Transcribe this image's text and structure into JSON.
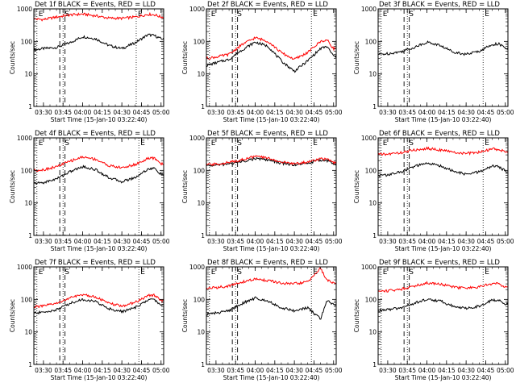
{
  "figure": {
    "x_axis_title": "Start Time (15-Jan-10 03:22:40)",
    "y_axis_title": "Counts/sec",
    "x_tick_labels": [
      "03:30",
      "03:45",
      "04:00",
      "04:15",
      "04:30",
      "04:45",
      "05:00"
    ],
    "y_tick_labels": [
      "1",
      "10",
      "100",
      "1000"
    ],
    "colors": {
      "events": "#000000",
      "lld": "#ff0000",
      "axes": "#000000"
    }
  },
  "chart_data": [
    {
      "type": "line",
      "title": "Det 1f BLACK = Events, RED = LLD",
      "xlim": [
        "03:22:40",
        "05:02:00"
      ],
      "ylim": [
        1,
        1000
      ],
      "yscale": "log",
      "markers": [
        {
          "label": "E",
          "at": "03:25"
        },
        {
          "label": "S",
          "at": "03:45"
        },
        {
          "label": "E",
          "at": "04:41"
        }
      ],
      "series": [
        {
          "name": "Events",
          "color": "#000000",
          "x": [
            "03:22:40",
            "03:30",
            "03:40",
            "03:50",
            "04:00",
            "04:10",
            "04:20",
            "04:30",
            "04:40",
            "04:50",
            "04:55",
            "05:00"
          ],
          "y": [
            55,
            60,
            65,
            90,
            140,
            120,
            75,
            60,
            90,
            160,
            150,
            120
          ]
        },
        {
          "name": "LLD",
          "color": "#ff0000",
          "x": [
            "03:22:40",
            "03:30",
            "03:40",
            "03:50",
            "04:00",
            "04:10",
            "04:20",
            "04:30",
            "04:40",
            "04:50",
            "04:55",
            "05:00"
          ],
          "y": [
            490,
            470,
            560,
            650,
            690,
            610,
            520,
            510,
            560,
            680,
            660,
            560
          ]
        }
      ]
    },
    {
      "type": "line",
      "title": "Det 2f BLACK = Events, RED = LLD",
      "xlim": [
        "03:22:40",
        "05:02:00"
      ],
      "ylim": [
        1,
        1000
      ],
      "yscale": "log",
      "markers": [
        {
          "label": "E",
          "at": "03:25"
        },
        {
          "label": "S",
          "at": "03:45"
        },
        {
          "label": "E",
          "at": "04:43"
        }
      ],
      "series": [
        {
          "name": "Events",
          "color": "#000000",
          "x": [
            "03:22:40",
            "03:30",
            "03:40",
            "03:50",
            "04:00",
            "04:10",
            "04:20",
            "04:30",
            "04:40",
            "04:50",
            "04:55",
            "05:00"
          ],
          "y": [
            18,
            22,
            28,
            55,
            95,
            70,
            25,
            12,
            25,
            60,
            70,
            35
          ]
        },
        {
          "name": "LLD",
          "color": "#ff0000",
          "x": [
            "03:22:40",
            "03:30",
            "03:40",
            "03:50",
            "04:00",
            "04:10",
            "04:20",
            "04:30",
            "04:40",
            "04:50",
            "04:55",
            "05:00"
          ],
          "y": [
            30,
            33,
            40,
            80,
            130,
            100,
            45,
            28,
            45,
            100,
            110,
            60
          ]
        }
      ]
    },
    {
      "type": "line",
      "title": "Det 3f BLACK = Events, RED = LLD",
      "xlim": [
        "03:22:40",
        "05:02:00"
      ],
      "ylim": [
        1,
        1000
      ],
      "yscale": "log",
      "markers": [
        {
          "label": "E",
          "at": "03:25"
        },
        {
          "label": "S",
          "at": "03:45"
        },
        {
          "label": "E",
          "at": "04:43"
        }
      ],
      "series": [
        {
          "name": "Events",
          "color": "#000000",
          "x": [
            "03:22:40",
            "03:30",
            "03:40",
            "03:50",
            "04:00",
            "04:10",
            "04:20",
            "04:30",
            "04:40",
            "04:50",
            "04:55",
            "05:00"
          ],
          "y": [
            40,
            42,
            48,
            65,
            95,
            75,
            48,
            40,
            50,
            80,
            85,
            60
          ]
        }
      ]
    },
    {
      "type": "line",
      "title": "Det 4f BLACK = Events, RED = LLD",
      "xlim": [
        "03:22:40",
        "05:02:00"
      ],
      "ylim": [
        1,
        1000
      ],
      "yscale": "log",
      "markers": [
        {
          "label": "E",
          "at": "03:25"
        },
        {
          "label": "S",
          "at": "03:45"
        },
        {
          "label": "E",
          "at": "04:43"
        }
      ],
      "series": [
        {
          "name": "Events",
          "color": "#000000",
          "x": [
            "03:22:40",
            "03:30",
            "03:40",
            "03:50",
            "04:00",
            "04:10",
            "04:20",
            "04:30",
            "04:40",
            "04:50",
            "04:55",
            "05:00"
          ],
          "y": [
            40,
            42,
            55,
            90,
            130,
            105,
            60,
            45,
            60,
            110,
            115,
            75
          ]
        },
        {
          "name": "LLD",
          "color": "#ff0000",
          "x": [
            "03:22:40",
            "03:30",
            "03:40",
            "03:50",
            "04:00",
            "04:10",
            "04:20",
            "04:30",
            "04:40",
            "04:50",
            "04:55",
            "05:00"
          ],
          "y": [
            100,
            105,
            130,
            190,
            260,
            220,
            140,
            120,
            150,
            230,
            240,
            160
          ]
        }
      ]
    },
    {
      "type": "line",
      "title": "Det 5f BLACK = Events, RED = LLD",
      "xlim": [
        "03:22:40",
        "05:02:00"
      ],
      "ylim": [
        1,
        1000
      ],
      "yscale": "log",
      "markers": [
        {
          "label": "E",
          "at": "03:25"
        },
        {
          "label": "S",
          "at": "03:45"
        },
        {
          "label": "E",
          "at": "04:43"
        }
      ],
      "series": [
        {
          "name": "Events",
          "color": "#000000",
          "x": [
            "03:22:40",
            "03:30",
            "03:40",
            "03:50",
            "04:00",
            "04:10",
            "04:20",
            "04:30",
            "04:40",
            "04:50",
            "04:55",
            "05:00"
          ],
          "y": [
            140,
            145,
            160,
            190,
            230,
            210,
            165,
            150,
            165,
            210,
            200,
            160
          ]
        },
        {
          "name": "LLD",
          "color": "#ff0000",
          "x": [
            "03:22:40",
            "03:30",
            "03:40",
            "03:50",
            "04:00",
            "04:10",
            "04:20",
            "04:30",
            "04:40",
            "04:50",
            "04:55",
            "05:00"
          ],
          "y": [
            150,
            155,
            175,
            215,
            270,
            240,
            180,
            160,
            180,
            230,
            220,
            170
          ]
        }
      ]
    },
    {
      "type": "line",
      "title": "Det 6f BLACK = Events, RED = LLD",
      "xlim": [
        "03:22:40",
        "05:02:00"
      ],
      "ylim": [
        1,
        1000
      ],
      "yscale": "log",
      "markers": [
        {
          "label": "E",
          "at": "03:25"
        },
        {
          "label": "S",
          "at": "03:45"
        },
        {
          "label": "E",
          "at": "04:43"
        }
      ],
      "series": [
        {
          "name": "Events",
          "color": "#000000",
          "x": [
            "03:22:40",
            "03:30",
            "03:40",
            "03:50",
            "04:00",
            "04:10",
            "04:20",
            "04:30",
            "04:40",
            "04:50",
            "04:55",
            "05:00"
          ],
          "y": [
            70,
            72,
            90,
            130,
            165,
            140,
            95,
            75,
            90,
            135,
            130,
            95
          ]
        },
        {
          "name": "LLD",
          "color": "#ff0000",
          "x": [
            "03:22:40",
            "03:30",
            "03:40",
            "03:50",
            "04:00",
            "04:10",
            "04:20",
            "04:30",
            "04:40",
            "04:50",
            "04:55",
            "05:00"
          ],
          "y": [
            310,
            315,
            350,
            420,
            470,
            430,
            360,
            330,
            360,
            460,
            440,
            370
          ]
        }
      ]
    },
    {
      "type": "line",
      "title": "Det 7f BLACK = Events, RED = LLD",
      "xlim": [
        "03:22:40",
        "05:02:00"
      ],
      "ylim": [
        1,
        1000
      ],
      "yscale": "log",
      "markers": [
        {
          "label": "E",
          "at": "03:25"
        },
        {
          "label": "S",
          "at": "03:45"
        },
        {
          "label": "E",
          "at": "04:43"
        }
      ],
      "series": [
        {
          "name": "Events",
          "color": "#000000",
          "x": [
            "03:22:40",
            "03:30",
            "03:40",
            "03:50",
            "04:00",
            "04:10",
            "04:20",
            "04:30",
            "04:40",
            "04:50",
            "04:55",
            "05:00"
          ],
          "y": [
            38,
            40,
            48,
            75,
            100,
            85,
            52,
            42,
            55,
            95,
            100,
            65
          ]
        },
        {
          "name": "LLD",
          "color": "#ff0000",
          "x": [
            "03:22:40",
            "03:30",
            "03:40",
            "03:50",
            "04:00",
            "04:10",
            "04:20",
            "04:30",
            "04:40",
            "04:50",
            "04:55",
            "05:00"
          ],
          "y": [
            60,
            62,
            75,
            110,
            140,
            120,
            75,
            62,
            80,
            130,
            135,
            90
          ]
        }
      ]
    },
    {
      "type": "line",
      "title": "Det 8f BLACK = Events, RED = LLD",
      "xlim": [
        "03:22:40",
        "05:02:00"
      ],
      "ylim": [
        1,
        1000
      ],
      "yscale": "log",
      "markers": [
        {
          "label": "E",
          "at": "03:25"
        },
        {
          "label": "S",
          "at": "03:45"
        },
        {
          "label": "E",
          "at": "04:43"
        }
      ],
      "series": [
        {
          "name": "Events",
          "color": "#000000",
          "x": [
            "03:22:40",
            "03:30",
            "03:40",
            "03:50",
            "04:00",
            "04:10",
            "04:20",
            "04:30",
            "04:40",
            "04:50",
            "04:55",
            "05:00"
          ],
          "y": [
            35,
            38,
            45,
            75,
            110,
            90,
            55,
            45,
            55,
            25,
            90,
            70
          ]
        },
        {
          "name": "LLD",
          "color": "#ff0000",
          "x": [
            "03:22:40",
            "03:30",
            "03:40",
            "03:50",
            "04:00",
            "04:10",
            "04:20",
            "04:30",
            "04:40",
            "04:50",
            "04:55",
            "05:00"
          ],
          "y": [
            220,
            230,
            260,
            340,
            420,
            380,
            310,
            300,
            340,
            900,
            380,
            330
          ]
        }
      ]
    },
    {
      "type": "line",
      "title": "Det 9f BLACK = Events, RED = LLD",
      "xlim": [
        "03:22:40",
        "05:02:00"
      ],
      "ylim": [
        1,
        1000
      ],
      "yscale": "log",
      "markers": [
        {
          "label": "E",
          "at": "03:25"
        },
        {
          "label": "S",
          "at": "03:45"
        },
        {
          "label": "E",
          "at": "04:43"
        }
      ],
      "series": [
        {
          "name": "Events",
          "color": "#000000",
          "x": [
            "03:22:40",
            "03:30",
            "03:40",
            "03:50",
            "04:00",
            "04:10",
            "04:20",
            "04:30",
            "04:40",
            "04:50",
            "04:55",
            "05:00"
          ],
          "y": [
            45,
            48,
            55,
            75,
            100,
            90,
            62,
            52,
            62,
            95,
            95,
            70
          ]
        },
        {
          "name": "LLD",
          "color": "#ff0000",
          "x": [
            "03:22:40",
            "03:30",
            "03:40",
            "03:50",
            "04:00",
            "04:10",
            "04:20",
            "04:30",
            "04:40",
            "04:50",
            "04:55",
            "05:00"
          ],
          "y": [
            180,
            185,
            205,
            260,
            320,
            300,
            240,
            220,
            240,
            310,
            300,
            240
          ]
        }
      ]
    }
  ]
}
